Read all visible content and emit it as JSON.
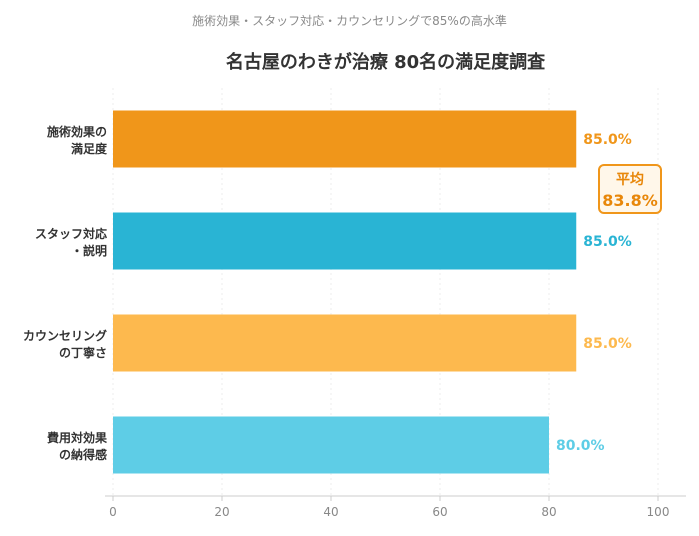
{
  "subtitle": "施術効果・スタッフ対応・カウンセリングで85%の高水準",
  "average": {
    "label": "平均",
    "value": "83.8%"
  },
  "chart_data": {
    "type": "bar",
    "orientation": "horizontal",
    "title": "名古屋のわきが治療 80名の満足度調査",
    "categories": [
      [
        "施術効果の",
        "満足度"
      ],
      [
        "スタッフ対応",
        "・説明"
      ],
      [
        "カウンセリング",
        "の丁寧さ"
      ],
      [
        "費用対効果",
        "の納得感"
      ]
    ],
    "values": [
      85.0,
      85.0,
      85.0,
      80.0
    ],
    "value_labels": [
      "85.0%",
      "85.0%",
      "85.0%",
      "80.0%"
    ],
    "colors": [
      "#F0961A",
      "#29B4D4",
      "#FDB94E",
      "#5ECDE6"
    ],
    "xlim": [
      0,
      100
    ],
    "xticks": [
      0,
      20,
      40,
      60,
      80,
      100
    ],
    "grid": true
  }
}
